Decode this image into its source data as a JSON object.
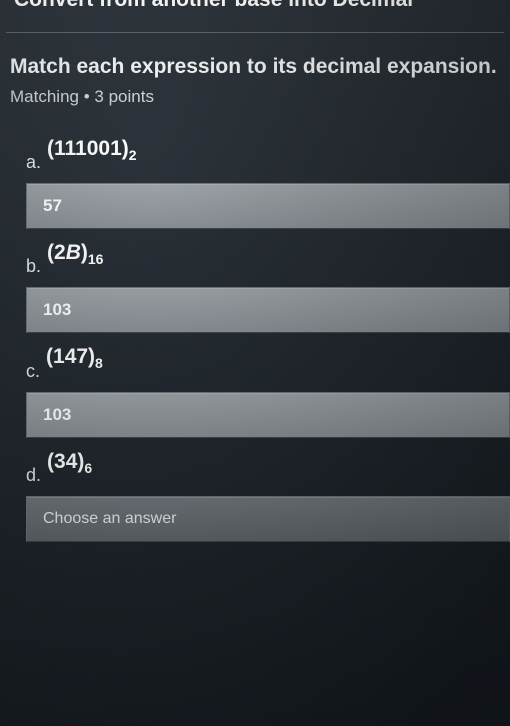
{
  "header_cut": "Convert from another base into Decimal",
  "prompt": "Match each expression to its decimal expansion.",
  "meta_type": "Matching",
  "meta_points": "3 points",
  "placeholder": "Choose an answer",
  "items": [
    {
      "letter": "a.",
      "expr_main": "(111001)",
      "expr_sub": "2",
      "answer": "57",
      "filled": true
    },
    {
      "letter": "b.",
      "expr_main": "(2B)",
      "expr_sub": "16",
      "answer": "103",
      "filled": true,
      "italic_index": 2
    },
    {
      "letter": "c.",
      "expr_main": "(147)",
      "expr_sub": "8",
      "answer": "103",
      "filled": true
    },
    {
      "letter": "d.",
      "expr_main": "(34)",
      "expr_sub": "6",
      "answer": "",
      "filled": false
    }
  ],
  "colors": {
    "bg_top": "#2a3138",
    "bg_bottom": "#141a20",
    "box_filled": "#9ba1a6",
    "box_empty": "#6f757b",
    "text": "#e8ebed",
    "divider": "#5d6268"
  }
}
